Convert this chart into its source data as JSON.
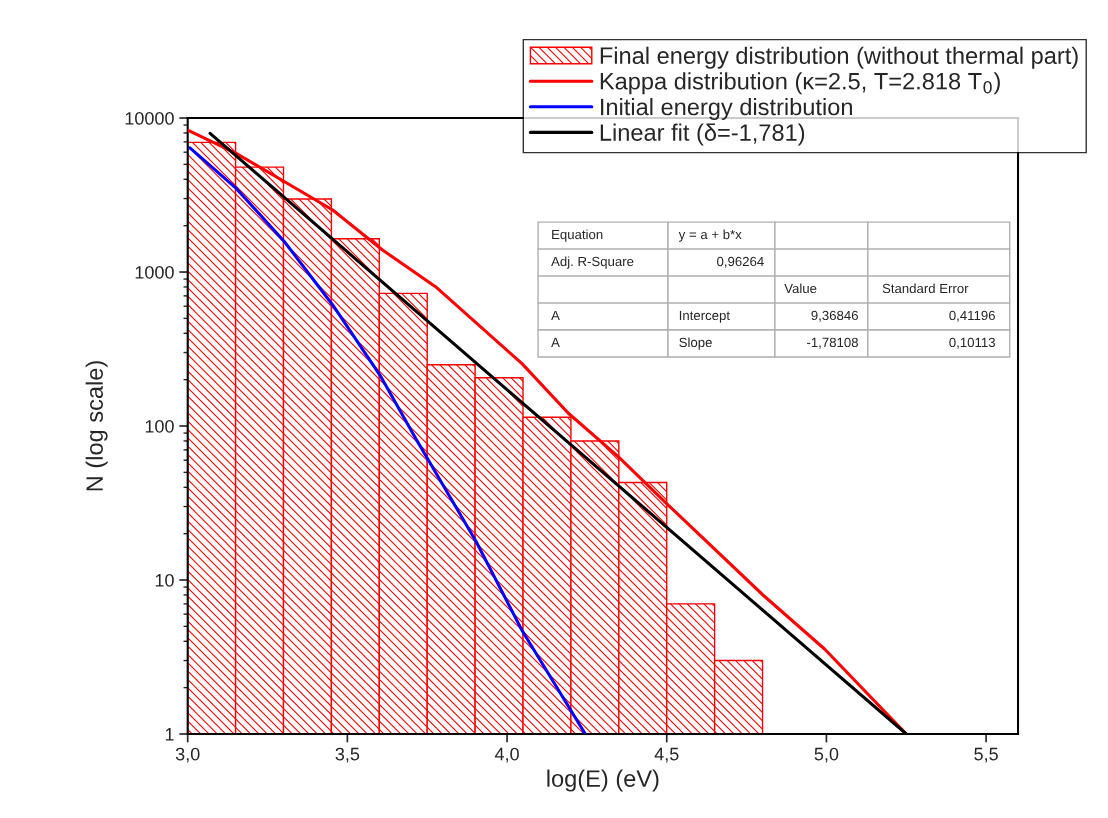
{
  "chart_data": {
    "type": "histogram",
    "xlabel": "log(E) (eV)",
    "ylabel": "N (log scale)",
    "log": "y",
    "grid": false,
    "legend": "top right",
    "xlim": [
      3.0,
      5.6
    ],
    "ylim": [
      1,
      10000
    ],
    "xticks": [
      {
        "value": 3.0,
        "label": "3,0"
      },
      {
        "value": 3.5,
        "label": "3,5"
      },
      {
        "value": 4.0,
        "label": "4,0"
      },
      {
        "value": 4.5,
        "label": "4,5"
      },
      {
        "value": 5.0,
        "label": "5,0"
      },
      {
        "value": 5.5,
        "label": "5,5"
      }
    ],
    "yticks": [
      1,
      10,
      100,
      1000,
      10000
    ],
    "series": [
      {
        "name": "Final energy distribution (without thermal part)",
        "color": "#ff0000",
        "bins": [
          3.0,
          3.15,
          3.3,
          3.45,
          3.6,
          3.75,
          3.9,
          4.05,
          4.2,
          4.35,
          4.5,
          4.65,
          4.8
        ],
        "values": [
          6950,
          4800,
          2980,
          1645,
          727,
          250,
          206,
          114,
          80,
          43,
          7,
          3
        ]
      },
      {
        "type": "line",
        "name": "Kappa distribution (κ=2.5, T=2.818 T$_{0}$)",
        "color": "#ff0000",
        "x": [
          3.0,
          3.152,
          3.454,
          3.61,
          3.776,
          4.046,
          4.192,
          4.349,
          4.498,
          4.804,
          4.995,
          5.25
        ],
        "values": [
          8360,
          5900,
          2530,
          1390,
          803,
          255,
          121,
          63,
          31.6,
          7.9,
          3.55,
          1
        ]
      },
      {
        "type": "line",
        "name": "Initial energy distribution",
        "color": "#0000ff",
        "x": [
          3.007,
          3.152,
          3.303,
          3.454,
          3.605,
          3.714,
          3.903,
          4.047,
          4.245
        ],
        "values": [
          6410,
          3490,
          1573,
          611,
          209,
          83,
          17.8,
          4.7,
          1
        ]
      },
      {
        "type": "line",
        "name": "Linear fit (δ=-1,781)",
        "color": "#000000",
        "x": [
          3.07,
          5.25
        ],
        "values": [
          7950,
          1
        ]
      }
    ],
    "annotations": [
      "Equation",
      "y = a + b*x",
      "Adj. R-Square",
      "0,96264",
      "Value",
      "Standard Error",
      "A",
      "Intercept",
      "9,36846",
      "0,41196",
      "A",
      "Slope",
      "-1,78108",
      "0,10113"
    ]
  }
}
